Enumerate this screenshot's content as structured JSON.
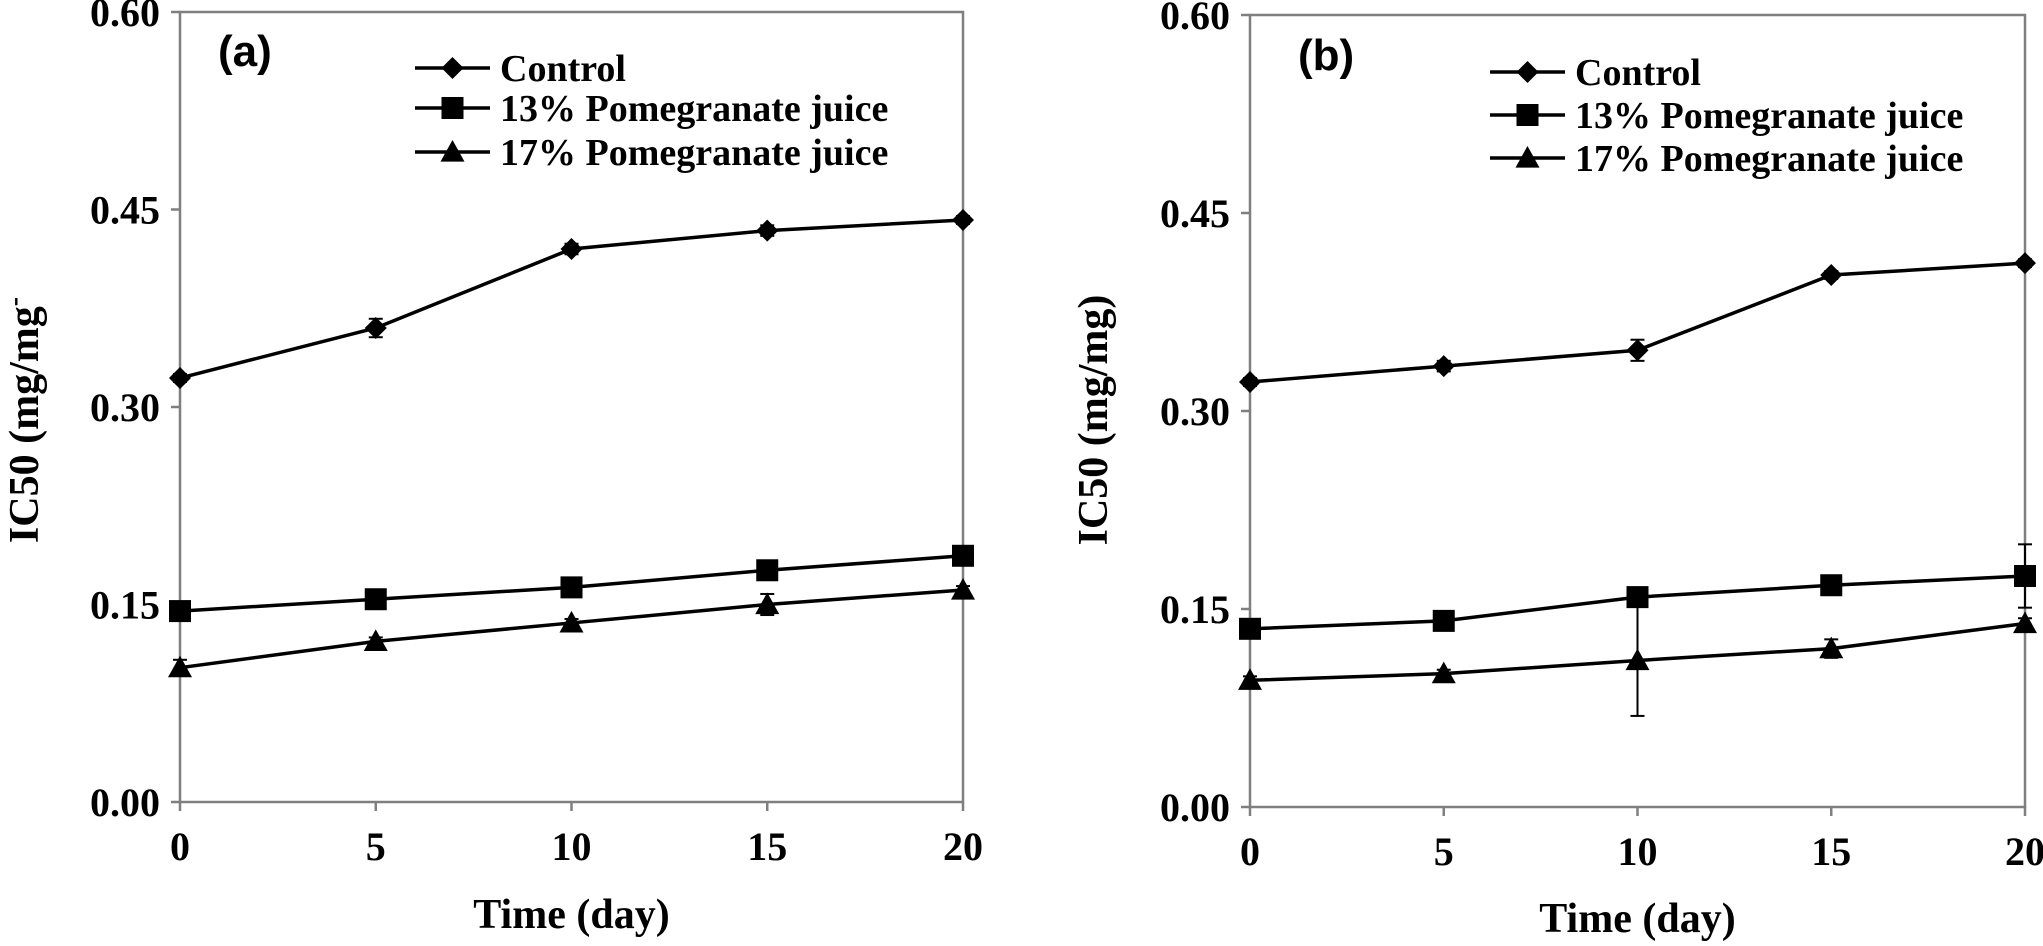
{
  "chart_data": [
    {
      "type": "line",
      "panel_label": "(a)",
      "xlabel": "Time (day)",
      "ylabel": "IC50 (mg/mg",
      "ylabel_superscript": "-",
      "xlim": [
        0,
        20
      ],
      "ylim": [
        0,
        0.6
      ],
      "x_ticks": [
        "0",
        "5",
        "10",
        "15",
        "20"
      ],
      "y_ticks": [
        "0.00",
        "0.15",
        "0.30",
        "0.45",
        "0.60"
      ],
      "legend_position": "top-right",
      "grid": false,
      "x": [
        0,
        5,
        10,
        15,
        20
      ],
      "series": [
        {
          "name": "Control",
          "marker": "diamond",
          "values": [
            0.322,
            0.36,
            0.42,
            0.434,
            0.442
          ],
          "errors": [
            0.003,
            0.007,
            0.004,
            0.004,
            0.003
          ]
        },
        {
          "name": "13% Pomegranate juice",
          "marker": "square",
          "values": [
            0.145,
            0.154,
            0.163,
            0.176,
            0.187
          ],
          "errors": [
            0.002,
            0.002,
            0.002,
            0.002,
            0.002
          ]
        },
        {
          "name": "17% Pomegranate juice",
          "marker": "triangle",
          "values": [
            0.102,
            0.122,
            0.136,
            0.15,
            0.161
          ],
          "errors": [
            0.006,
            0.003,
            0.003,
            0.008,
            0.003
          ]
        }
      ]
    },
    {
      "type": "line",
      "panel_label": "(b)",
      "xlabel": "Time (day)",
      "ylabel": "IC50 (mg/mg)",
      "ylabel_superscript": "",
      "xlim": [
        0,
        20
      ],
      "ylim": [
        0,
        0.6
      ],
      "x_ticks": [
        "0",
        "5",
        "10",
        "15",
        "20"
      ],
      "y_ticks": [
        "0.00",
        "0.15",
        "0.30",
        "0.45",
        "0.60"
      ],
      "legend_position": "top-right",
      "grid": false,
      "x": [
        0,
        5,
        10,
        15,
        20
      ],
      "series": [
        {
          "name": "Control",
          "marker": "diamond",
          "values": [
            0.322,
            0.334,
            0.346,
            0.403,
            0.412
          ],
          "errors": [
            0.003,
            0.004,
            0.008,
            0.003,
            0.003
          ]
        },
        {
          "name": "13% Pomegranate juice",
          "marker": "square",
          "values": [
            0.135,
            0.141,
            0.159,
            0.168,
            0.175
          ],
          "errors": [
            0.002,
            0.002,
            0.002,
            0.002,
            0.024
          ]
        },
        {
          "name": "17% Pomegranate juice",
          "marker": "triangle",
          "values": [
            0.096,
            0.101,
            0.111,
            0.12,
            0.139
          ],
          "errors": [
            0.003,
            0.003,
            0.042,
            0.007,
            0.004
          ]
        }
      ]
    }
  ]
}
